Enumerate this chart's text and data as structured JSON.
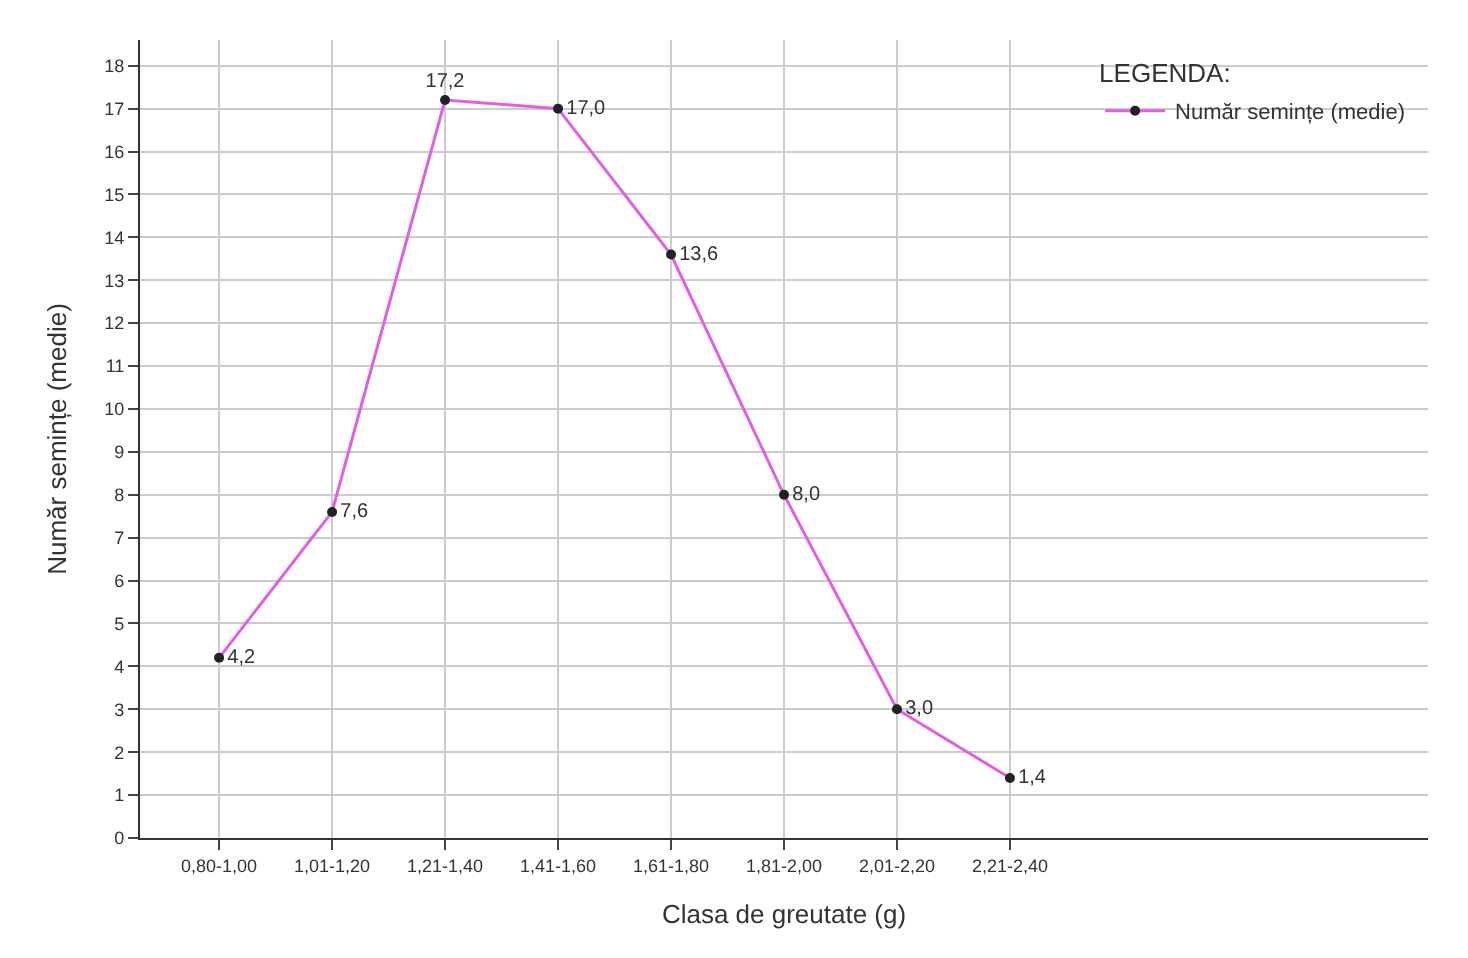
{
  "chart_data": {
    "type": "line",
    "xlabel": "Clasa de greutate (g)",
    "ylabel": "Număr semințe (medie)",
    "legend_title": "LEGENDA:",
    "categories": [
      "0,80-1,00",
      "1,01-1,20",
      "1,21-1,40",
      "1,41-1,60",
      "1,61-1,80",
      "1,81-2,00",
      "2,01-2,20",
      "2,21-2,40",
      null,
      null,
      null
    ],
    "series": [
      {
        "name": "Număr semințe (medie)",
        "color": "#e060e0",
        "values": [
          4.2,
          7.6,
          17.2,
          17.0,
          13.6,
          8.0,
          3.0,
          1.4,
          null,
          null,
          null
        ],
        "value_labels": [
          "4,2",
          "7,6",
          "17,2",
          "17,0",
          "13,6",
          "8,0",
          "3,0",
          "1,4",
          null,
          null,
          null
        ]
      }
    ],
    "ylim": [
      0,
      18.6
    ],
    "yticks": [
      0,
      1,
      2,
      3,
      4,
      5,
      6,
      7,
      8,
      9,
      10,
      11,
      12,
      13,
      14,
      15,
      16,
      17,
      18
    ],
    "grid": true,
    "legend": "top right",
    "marker": "circle",
    "line_style": "solid"
  }
}
